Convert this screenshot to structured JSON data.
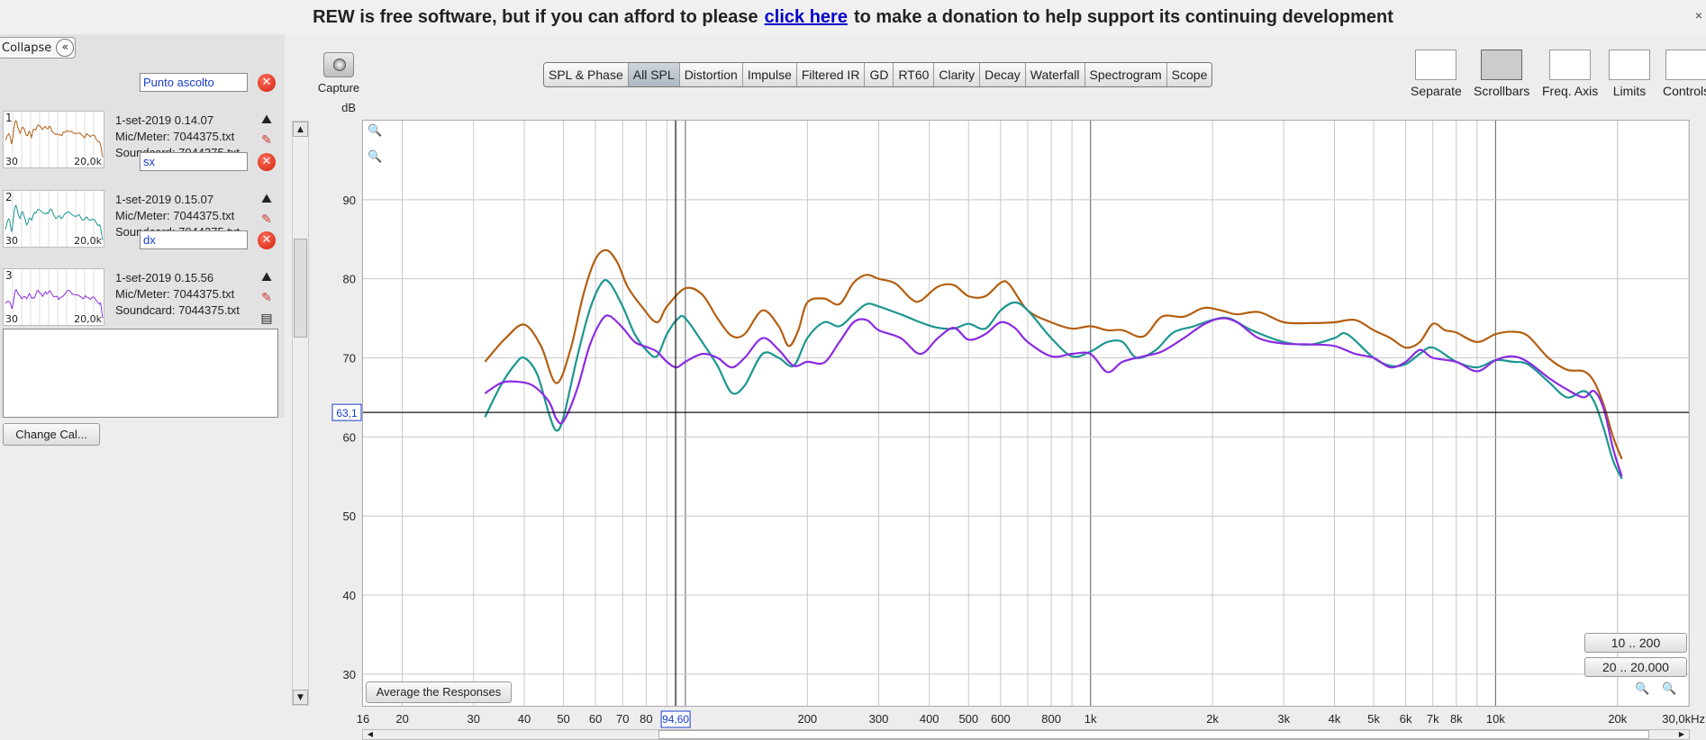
{
  "banner": {
    "text_before": "REW is free software, but if you can afford to please",
    "link_text": "click here",
    "text_after": "to make a donation to help support its continuing development",
    "close_glyph": "×"
  },
  "left_panel": {
    "collapse_label": "Collapse",
    "collapse_icon": "«",
    "measurements": [
      {
        "number": "1",
        "name": "Punto ascolto",
        "date": "1-set-2019 0.14.07",
        "mic": "Mic/Meter: 7044375.txt",
        "soundcard": "Soundcard: 7044375.txt",
        "range_lo": "30",
        "range_hi": "20,0k",
        "color": "#b35f12"
      },
      {
        "number": "2",
        "name": "sx",
        "date": "1-set-2019 0.15.07",
        "mic": "Mic/Meter: 7044375.txt",
        "soundcard": "Soundcard: 7044375.txt",
        "range_lo": "30",
        "range_hi": "20,0k",
        "color": "#1c9690"
      },
      {
        "number": "3",
        "name": "dx",
        "date": "1-set-2019 0.15.56",
        "mic": "Mic/Meter: 7044375.txt",
        "soundcard": "Soundcard: 7044375.txt",
        "range_lo": "30",
        "range_hi": "20,0k",
        "color": "#8a2be2"
      }
    ],
    "change_cal_label": "Change Cal..."
  },
  "capture_label": "Capture",
  "tabs": [
    {
      "label": "SPL & Phase",
      "active": false
    },
    {
      "label": "All SPL",
      "active": true
    },
    {
      "label": "Distortion",
      "active": false
    },
    {
      "label": "Impulse",
      "active": false
    },
    {
      "label": "Filtered IR",
      "active": false
    },
    {
      "label": "GD",
      "active": false
    },
    {
      "label": "RT60",
      "active": false
    },
    {
      "label": "Clarity",
      "active": false
    },
    {
      "label": "Decay",
      "active": false
    },
    {
      "label": "Waterfall",
      "active": false
    },
    {
      "label": "Spectrogram",
      "active": false
    },
    {
      "label": "Scope",
      "active": false
    }
  ],
  "toolbar_right": [
    {
      "label": "Separate",
      "icon": "separate-icon"
    },
    {
      "label": "Scrollbars",
      "icon": "scrollbars-icon"
    },
    {
      "label": "Freq. Axis",
      "icon": "freq-axis-icon"
    },
    {
      "label": "Limits",
      "icon": "limits-icon"
    },
    {
      "label": "Controls",
      "icon": "controls-gear-icon"
    }
  ],
  "buttons": {
    "average": "Average the Responses",
    "range1": "10 .. 200",
    "range2": "20 .. 20.000"
  },
  "chart_data": {
    "type": "line",
    "ylabel": "dB",
    "xunit": "Hz",
    "x_scale": "log",
    "xlim": [
      16,
      30000
    ],
    "ylim": [
      26,
      100
    ],
    "y_ticks": [
      30,
      40,
      50,
      60,
      70,
      80,
      90
    ],
    "x_ticks": [
      {
        "v": 16,
        "label": "16"
      },
      {
        "v": 20,
        "label": "20"
      },
      {
        "v": 30,
        "label": "30"
      },
      {
        "v": 40,
        "label": "40"
      },
      {
        "v": 50,
        "label": "50"
      },
      {
        "v": 60,
        "label": "60"
      },
      {
        "v": 70,
        "label": "70"
      },
      {
        "v": 80,
        "label": "80"
      },
      {
        "v": 200,
        "label": "200"
      },
      {
        "v": 300,
        "label": "300"
      },
      {
        "v": 400,
        "label": "400"
      },
      {
        "v": 500,
        "label": "500"
      },
      {
        "v": 600,
        "label": "600"
      },
      {
        "v": 800,
        "label": "800"
      },
      {
        "v": 1000,
        "label": "1k"
      },
      {
        "v": 2000,
        "label": "2k"
      },
      {
        "v": 3000,
        "label": "3k"
      },
      {
        "v": 4000,
        "label": "4k"
      },
      {
        "v": 5000,
        "label": "5k"
      },
      {
        "v": 6000,
        "label": "6k"
      },
      {
        "v": 7000,
        "label": "7k"
      },
      {
        "v": 8000,
        "label": "8k"
      },
      {
        "v": 10000,
        "label": "10k"
      },
      {
        "v": 20000,
        "label": "20k"
      },
      {
        "v": 30000,
        "label": "30,0kHz"
      }
    ],
    "grid": true,
    "cursor": {
      "x": 94.6,
      "y": 63.1,
      "x_label": "94,60",
      "y_label": "63,1"
    },
    "series": [
      {
        "color": "#b35f12",
        "points": [
          [
            32,
            69.5
          ],
          [
            36,
            72.5
          ],
          [
            40,
            74.2
          ],
          [
            44,
            71.5
          ],
          [
            48,
            66.8
          ],
          [
            52,
            71
          ],
          [
            56,
            78
          ],
          [
            60,
            82.5
          ],
          [
            64,
            83.6
          ],
          [
            68,
            82
          ],
          [
            72,
            79
          ],
          [
            78,
            76.5
          ],
          [
            85,
            74.5
          ],
          [
            90,
            76.5
          ],
          [
            100,
            78.8
          ],
          [
            110,
            78
          ],
          [
            120,
            75
          ],
          [
            130,
            72.8
          ],
          [
            140,
            73
          ],
          [
            155,
            76
          ],
          [
            170,
            74
          ],
          [
            180,
            71.5
          ],
          [
            190,
            73.5
          ],
          [
            200,
            77
          ],
          [
            220,
            77.5
          ],
          [
            240,
            76.8
          ],
          [
            260,
            79.5
          ],
          [
            280,
            80.5
          ],
          [
            300,
            80
          ],
          [
            330,
            79.4
          ],
          [
            360,
            77.5
          ],
          [
            380,
            77.2
          ],
          [
            420,
            79
          ],
          [
            460,
            79.2
          ],
          [
            500,
            77.8
          ],
          [
            550,
            77.8
          ],
          [
            600,
            79.5
          ],
          [
            630,
            79.3
          ],
          [
            700,
            76
          ],
          [
            800,
            74.5
          ],
          [
            900,
            73.7
          ],
          [
            1000,
            74
          ],
          [
            1100,
            73.5
          ],
          [
            1200,
            73.5
          ],
          [
            1350,
            72.7
          ],
          [
            1500,
            75.2
          ],
          [
            1700,
            75.2
          ],
          [
            1900,
            76.3
          ],
          [
            2100,
            76
          ],
          [
            2300,
            75.5
          ],
          [
            2600,
            75.8
          ],
          [
            3000,
            74.5
          ],
          [
            3500,
            74.4
          ],
          [
            4000,
            74.5
          ],
          [
            4500,
            74.8
          ],
          [
            5000,
            73.5
          ],
          [
            5500,
            72.5
          ],
          [
            6000,
            71.3
          ],
          [
            6500,
            72
          ],
          [
            7000,
            74.3
          ],
          [
            7500,
            73.5
          ],
          [
            8000,
            73.2
          ],
          [
            9000,
            72
          ],
          [
            10000,
            73
          ],
          [
            11000,
            73.3
          ],
          [
            12000,
            72.8
          ],
          [
            13500,
            70
          ],
          [
            15000,
            68.5
          ],
          [
            16500,
            68.3
          ],
          [
            17500,
            67
          ],
          [
            18500,
            64
          ],
          [
            19500,
            60
          ],
          [
            20500,
            57.2
          ]
        ]
      },
      {
        "color": "#1c9690",
        "points": [
          [
            32,
            62.5
          ],
          [
            35,
            66.5
          ],
          [
            38,
            69.2
          ],
          [
            40,
            70
          ],
          [
            43,
            68
          ],
          [
            46,
            63
          ],
          [
            48,
            60.8
          ],
          [
            50,
            62.5
          ],
          [
            54,
            70
          ],
          [
            58,
            76
          ],
          [
            62,
            79.4
          ],
          [
            65,
            79.5
          ],
          [
            70,
            76.5
          ],
          [
            75,
            73
          ],
          [
            80,
            71
          ],
          [
            85,
            70.2
          ],
          [
            90,
            73
          ],
          [
            96,
            75
          ],
          [
            100,
            75
          ],
          [
            110,
            72
          ],
          [
            120,
            69
          ],
          [
            130,
            65.6
          ],
          [
            140,
            66.5
          ],
          [
            155,
            70.5
          ],
          [
            170,
            70
          ],
          [
            185,
            69
          ],
          [
            200,
            72.5
          ],
          [
            220,
            74.5
          ],
          [
            240,
            74
          ],
          [
            260,
            75.5
          ],
          [
            280,
            76.8
          ],
          [
            300,
            76.5
          ],
          [
            340,
            75.5
          ],
          [
            380,
            74.5
          ],
          [
            420,
            73.8
          ],
          [
            460,
            73.7
          ],
          [
            500,
            74.3
          ],
          [
            550,
            73.7
          ],
          [
            600,
            76
          ],
          [
            650,
            77
          ],
          [
            700,
            76
          ],
          [
            800,
            72.5
          ],
          [
            900,
            70.2
          ],
          [
            1000,
            70.8
          ],
          [
            1100,
            72
          ],
          [
            1200,
            72
          ],
          [
            1300,
            70
          ],
          [
            1450,
            71
          ],
          [
            1600,
            73.2
          ],
          [
            1800,
            74
          ],
          [
            2000,
            74.8
          ],
          [
            2200,
            75
          ],
          [
            2500,
            73.5
          ],
          [
            3000,
            72
          ],
          [
            3500,
            71.7
          ],
          [
            4000,
            72.5
          ],
          [
            4300,
            73
          ],
          [
            5000,
            70
          ],
          [
            5500,
            69
          ],
          [
            6000,
            69.2
          ],
          [
            6500,
            70.5
          ],
          [
            7000,
            71.3
          ],
          [
            8000,
            69.5
          ],
          [
            9000,
            68.8
          ],
          [
            10000,
            69.7
          ],
          [
            11000,
            69.5
          ],
          [
            12000,
            69.2
          ],
          [
            13500,
            67
          ],
          [
            15000,
            65
          ],
          [
            16500,
            65.8
          ],
          [
            17500,
            64.5
          ],
          [
            18500,
            61
          ],
          [
            19500,
            57
          ],
          [
            20500,
            54.7
          ]
        ]
      },
      {
        "color": "#8a2be2",
        "points": [
          [
            32,
            65.5
          ],
          [
            35,
            66.8
          ],
          [
            38,
            67
          ],
          [
            42,
            66.5
          ],
          [
            46,
            64.5
          ],
          [
            48,
            62.3
          ],
          [
            50,
            62
          ],
          [
            54,
            66
          ],
          [
            58,
            71.5
          ],
          [
            62,
            74.7
          ],
          [
            65,
            75.3
          ],
          [
            70,
            73.8
          ],
          [
            75,
            72
          ],
          [
            80,
            71.4
          ],
          [
            85,
            70.8
          ],
          [
            90,
            69.5
          ],
          [
            95,
            68.8
          ],
          [
            100,
            69.5
          ],
          [
            110,
            70.5
          ],
          [
            120,
            70
          ],
          [
            130,
            68.8
          ],
          [
            140,
            70
          ],
          [
            155,
            72.5
          ],
          [
            170,
            71
          ],
          [
            185,
            69
          ],
          [
            200,
            69.5
          ],
          [
            220,
            69.4
          ],
          [
            240,
            72
          ],
          [
            260,
            74.5
          ],
          [
            280,
            74.8
          ],
          [
            300,
            73.5
          ],
          [
            340,
            72.5
          ],
          [
            380,
            70.5
          ],
          [
            420,
            72.5
          ],
          [
            460,
            73.8
          ],
          [
            500,
            72.3
          ],
          [
            550,
            73
          ],
          [
            600,
            74.5
          ],
          [
            650,
            73.8
          ],
          [
            700,
            72
          ],
          [
            800,
            70.2
          ],
          [
            900,
            70.5
          ],
          [
            1000,
            70.5
          ],
          [
            1100,
            68.2
          ],
          [
            1200,
            69.5
          ],
          [
            1350,
            70.2
          ],
          [
            1500,
            70.8
          ],
          [
            1700,
            72.5
          ],
          [
            1900,
            74.2
          ],
          [
            2100,
            75
          ],
          [
            2300,
            74.5
          ],
          [
            2600,
            72.5
          ],
          [
            3000,
            71.8
          ],
          [
            3500,
            71.7
          ],
          [
            4000,
            71.5
          ],
          [
            4500,
            70.5
          ],
          [
            5000,
            70
          ],
          [
            5500,
            68.8
          ],
          [
            6000,
            69.5
          ],
          [
            6500,
            71
          ],
          [
            7000,
            70
          ],
          [
            8000,
            69.5
          ],
          [
            9000,
            68.3
          ],
          [
            10000,
            69.7
          ],
          [
            11000,
            70.2
          ],
          [
            12000,
            69.5
          ],
          [
            13500,
            67.5
          ],
          [
            15000,
            66
          ],
          [
            16500,
            65
          ],
          [
            17500,
            65.8
          ],
          [
            18500,
            63.5
          ],
          [
            19500,
            58.5
          ],
          [
            20500,
            55
          ]
        ]
      }
    ]
  }
}
